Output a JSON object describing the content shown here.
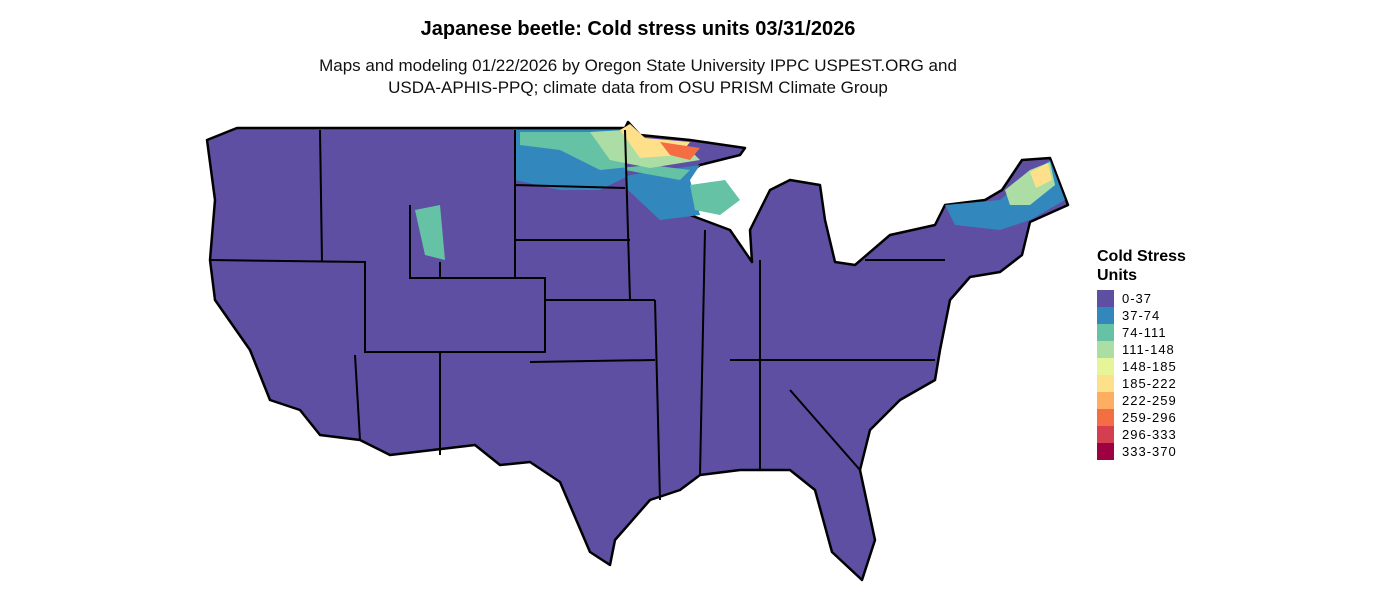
{
  "title": "Japanese beetle: Cold stress units 03/31/2026",
  "subtitle_line1": "Maps and modeling 01/22/2026 by Oregon State University IPPC USPEST.ORG and",
  "subtitle_line2": "USDA-APHIS-PPQ; climate data from OSU PRISM Climate Group",
  "legend": {
    "title_line1": "Cold Stress",
    "title_line2": "Units",
    "items": [
      {
        "label": "0-37",
        "color": "#5E4FA2"
      },
      {
        "label": "37-74",
        "color": "#3288BD"
      },
      {
        "label": "74-111",
        "color": "#66C2A5"
      },
      {
        "label": "111-148",
        "color": "#ABDDA4"
      },
      {
        "label": "148-185",
        "color": "#E6F598"
      },
      {
        "label": "185-222",
        "color": "#FEE08B"
      },
      {
        "label": "222-259",
        "color": "#FDAE61"
      },
      {
        "label": "259-296",
        "color": "#F46D43"
      },
      {
        "label": "296-333",
        "color": "#D53E4F"
      },
      {
        "label": "333-370",
        "color": "#9E0142"
      }
    ]
  }
}
